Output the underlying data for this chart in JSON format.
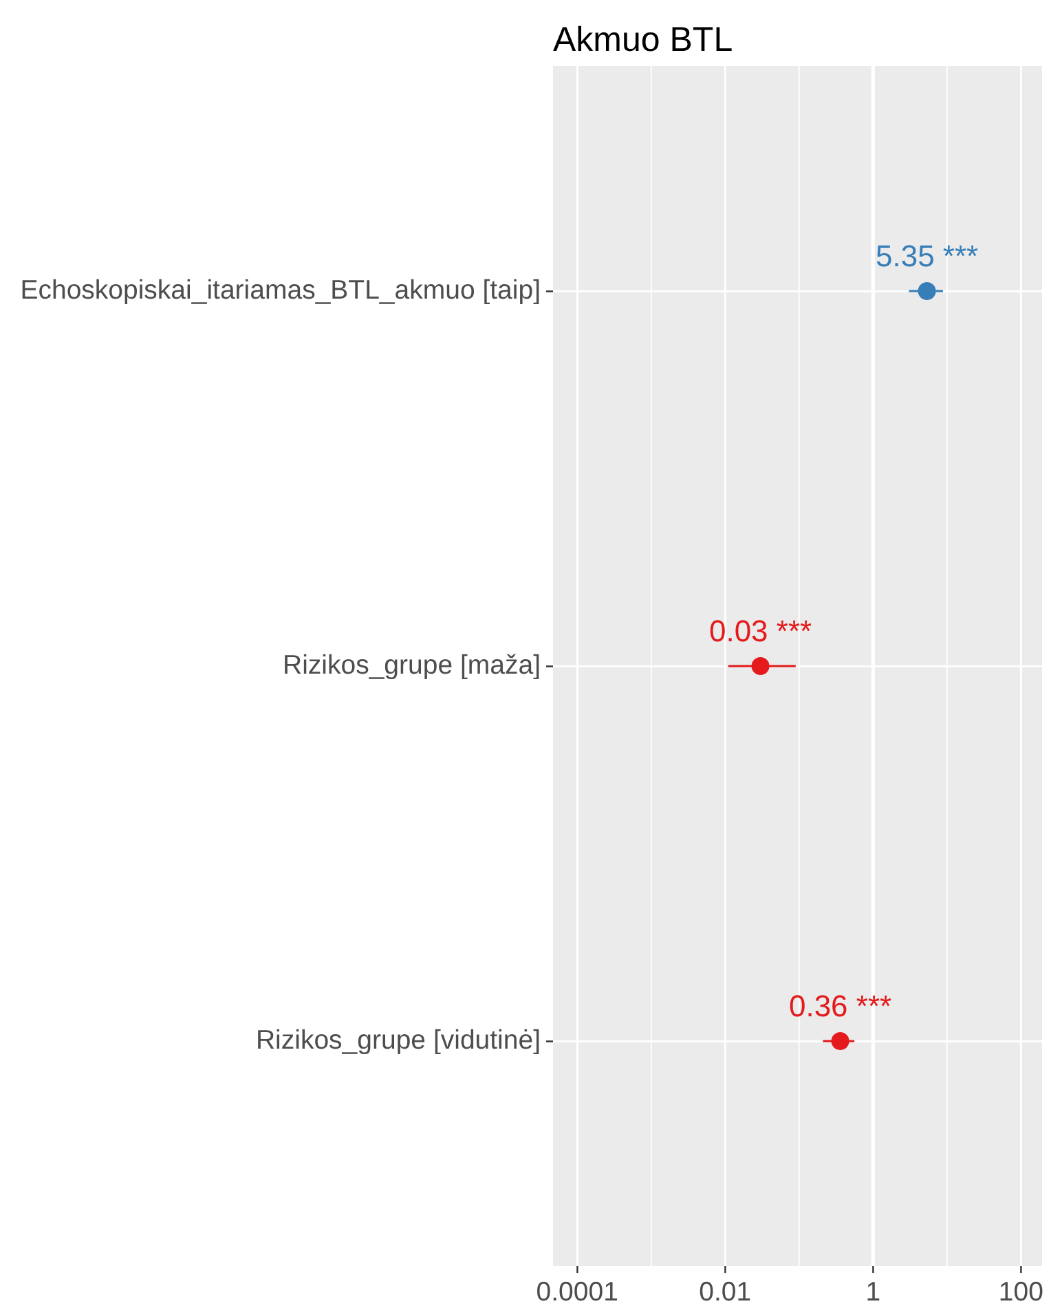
{
  "chart_data": {
    "type": "scatter",
    "title": "Akmuo BTL",
    "orientation": "horizontal",
    "categories": [
      "Echoskopiskai_itariamas_BTL_akmuo [taip]",
      "Rizikos_grupe [maža]",
      "Rizikos_grupe [vidutinė]"
    ],
    "values": [
      5.35,
      0.03,
      0.36
    ],
    "errors": [
      [
        3.06,
        8.83
      ],
      [
        0.011,
        0.09
      ],
      [
        0.21,
        0.56
      ]
    ],
    "colors": [
      "#377eb8",
      "#e41a1c",
      "#e41a1c"
    ],
    "value_labels": [
      "5.35 ***",
      "0.03 ***",
      "0.36 ***"
    ],
    "log": "x",
    "xlim": [
      4.7e-05,
      193
    ],
    "xticks": [
      0.0001,
      0.01,
      1,
      100
    ],
    "ref_lines": [
      {
        "axis": "x",
        "value": 1,
        "color": "#ffffff"
      }
    ],
    "grid": true,
    "marker": "circle"
  }
}
